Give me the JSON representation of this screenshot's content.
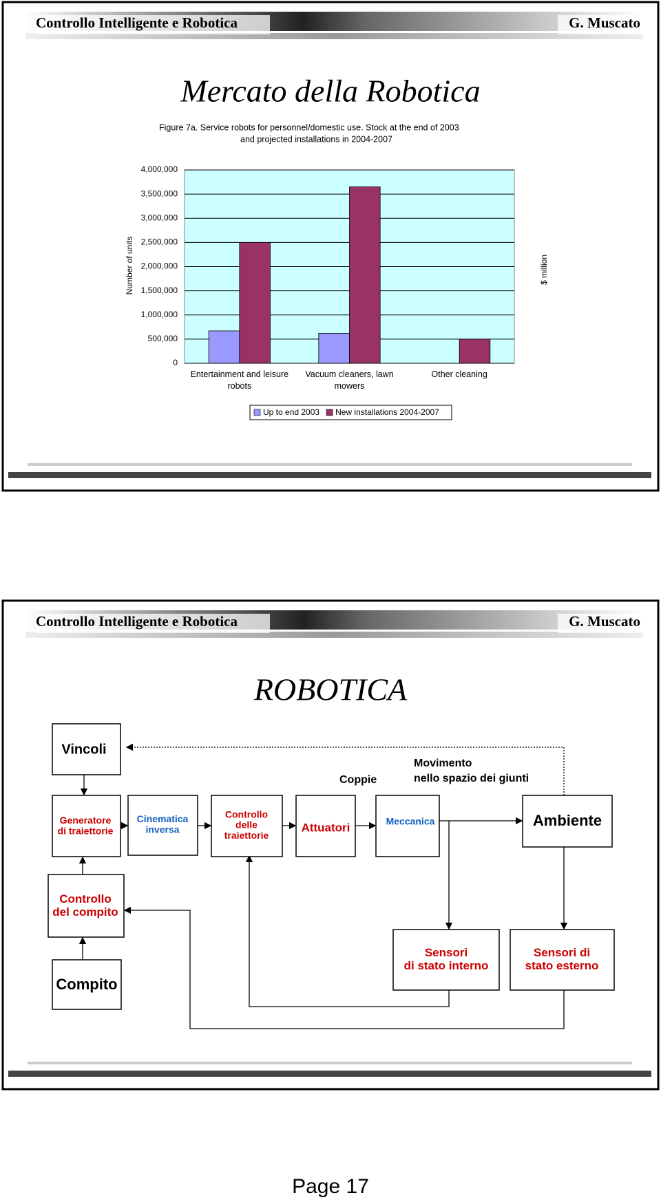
{
  "slides": [
    {
      "header": {
        "left": "Controllo Intelligente e Robotica",
        "right": "G. Muscato"
      },
      "title": "Mercato della Robotica"
    },
    {
      "header": {
        "left": "Controllo Intelligente e Robotica",
        "right": "G. Muscato"
      },
      "title": "ROBOTICA",
      "diagram": {
        "nodes": [
          {
            "lines": [
              "Vincoli"
            ],
            "color": "#000000"
          },
          {
            "lines": [
              "Generatore",
              "di traiettorie"
            ],
            "color": "#cc0000"
          },
          {
            "lines": [
              "Cinematica",
              "inversa"
            ],
            "color": "#1060c0"
          },
          {
            "lines": [
              "Controllo",
              "delle",
              "traiettorie"
            ],
            "color": "#cc0000"
          },
          {
            "lines": [
              "Attuatori"
            ],
            "color": "#cc0000"
          },
          {
            "lines": [
              "Meccanica"
            ],
            "color": "#1060c0"
          },
          {
            "lines": [
              "Ambiente"
            ],
            "color": "#000000"
          },
          {
            "lines": [
              "Controllo",
              "del compito"
            ],
            "color": "#cc0000"
          },
          {
            "lines": [
              "Compito"
            ],
            "color": "#000000"
          },
          {
            "lines": [
              "Sensori",
              "di stato interno"
            ],
            "color": "#cc0000"
          },
          {
            "lines": [
              "Sensori di",
              "stato esterno"
            ],
            "color": "#cc0000"
          }
        ],
        "labels": [
          {
            "lines": [
              "Coppie"
            ]
          },
          {
            "lines": [
              "Movimento",
              "nello spazio dei giunti"
            ]
          }
        ]
      }
    }
  ],
  "chart_data": {
    "type": "bar",
    "title": [
      "Figure 7a.  Service robots for personnel/domestic use.  Stock at the end of 2003",
      "and projected installations in 2004-2007"
    ],
    "categories": [
      "Entertainment and leisure robots",
      "Vacuum cleaners, lawn mowers",
      "Other cleaning"
    ],
    "series": [
      {
        "name": "Up to end 2003",
        "color": "#9999ff",
        "values": [
          670000,
          620000,
          null
        ]
      },
      {
        "name": "New installations 2004-2007",
        "color": "#993366",
        "values": [
          2500000,
          3650000,
          500000
        ]
      }
    ],
    "y_label": "Number of units",
    "y2_label": "$ million",
    "ylim": [
      0,
      4000000
    ],
    "yticks": [
      0,
      {
        "value": 500000,
        "label": "500,000"
      },
      {
        "value": 1000000,
        "label": "1,000,000"
      },
      {
        "value": 1500000,
        "label": "1,500,000"
      },
      {
        "value": 2000000,
        "label": "2,000,000"
      },
      {
        "value": 2500000,
        "label": "2,500,000"
      },
      {
        "value": 3000000,
        "label": "3,000,000"
      },
      {
        "value": 3500000,
        "label": "3,500,000"
      },
      {
        "value": 4000000,
        "label": "4,000,000"
      }
    ],
    "grid": true,
    "plot_background": "#ccffff",
    "legend": "bottom"
  },
  "page_label": "Page 17"
}
